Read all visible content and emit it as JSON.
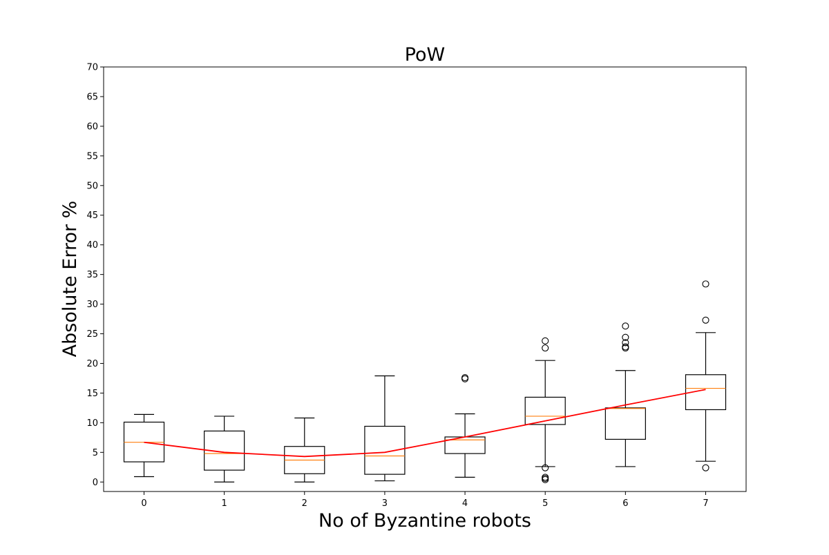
{
  "chart_data": {
    "type": "box",
    "title": "PoW",
    "xlabel": "No of Byzantine robots",
    "ylabel": "Absolute Error %",
    "categories": [
      "0",
      "1",
      "2",
      "3",
      "4",
      "5",
      "6",
      "7"
    ],
    "ylim": [
      -1.6,
      70
    ],
    "yticks": [
      0,
      5,
      10,
      15,
      20,
      25,
      30,
      35,
      40,
      45,
      50,
      55,
      60,
      65,
      70
    ],
    "grid": false,
    "legend": "none",
    "boxes": [
      {
        "category": "0",
        "whisker_low": 0.9,
        "q1": 3.4,
        "median": 6.7,
        "q3": 10.1,
        "whisker_high": 11.4,
        "fliers": []
      },
      {
        "category": "1",
        "whisker_low": 0.0,
        "q1": 2.0,
        "median": 4.8,
        "q3": 8.6,
        "whisker_high": 11.1,
        "fliers": []
      },
      {
        "category": "2",
        "whisker_low": 0.0,
        "q1": 1.4,
        "median": 3.7,
        "q3": 6.0,
        "whisker_high": 10.8,
        "fliers": []
      },
      {
        "category": "3",
        "whisker_low": 0.2,
        "q1": 1.3,
        "median": 4.4,
        "q3": 9.4,
        "whisker_high": 17.9,
        "fliers": []
      },
      {
        "category": "4",
        "whisker_low": 0.8,
        "q1": 4.8,
        "median": 7.1,
        "q3": 7.6,
        "whisker_high": 11.5,
        "fliers": [
          17.4,
          17.6
        ]
      },
      {
        "category": "5",
        "whisker_low": 2.6,
        "q1": 9.7,
        "median": 11.1,
        "q3": 14.3,
        "whisker_high": 20.5,
        "fliers": [
          23.8,
          22.6,
          2.4,
          0.8,
          0.6,
          0.4
        ]
      },
      {
        "category": "6",
        "whisker_low": 2.6,
        "q1": 7.2,
        "median": 12.4,
        "q3": 12.5,
        "whisker_high": 18.8,
        "fliers": [
          26.3,
          24.4,
          23.5,
          22.8,
          22.6
        ]
      },
      {
        "category": "7",
        "whisker_low": 3.5,
        "q1": 12.2,
        "median": 15.8,
        "q3": 18.1,
        "whisker_high": 25.2,
        "fliers": [
          33.4,
          27.3,
          2.4
        ]
      }
    ],
    "mean_line": {
      "color": "#ff0000",
      "values": [
        6.7,
        5.0,
        4.3,
        5.0,
        7.6,
        10.3,
        13.0,
        15.6
      ]
    },
    "colors": {
      "box": "#000000",
      "median": "#ff7f0e",
      "flier": "#000000"
    }
  }
}
